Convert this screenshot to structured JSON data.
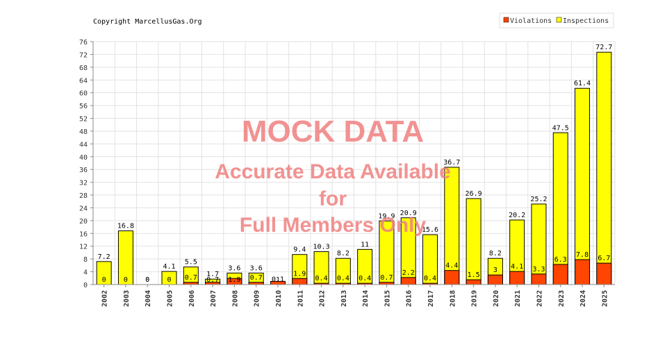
{
  "copyright": "Copyright MarcellusGas.Org",
  "watermark": {
    "line1": "MOCK DATA",
    "line2": "Accurate Data Available",
    "line3": "for",
    "line4": "Full Members Only",
    "color": "#f08080"
  },
  "chart_data": {
    "type": "bar",
    "categories": [
      "2002",
      "2003",
      "2004",
      "2005",
      "2006",
      "2007",
      "2008",
      "2009",
      "2010",
      "2011",
      "2012",
      "2013",
      "2014",
      "2015",
      "2016",
      "2017",
      "2018",
      "2019",
      "2020",
      "2021",
      "2022",
      "2023",
      "2024",
      "2025"
    ],
    "series": [
      {
        "name": "Violations",
        "color": "#ff4500",
        "values": [
          0,
          0,
          0,
          0,
          0.7,
          0.7,
          1.9,
          0.7,
          1,
          1.9,
          0.4,
          0.4,
          0.4,
          0.7,
          2.2,
          0.4,
          4.4,
          1.5,
          3,
          4.1,
          3.3,
          6.3,
          7.8,
          6.7
        ],
        "labels": [
          "0",
          "0",
          "0",
          "0",
          "0.7",
          "0.7",
          "1.9",
          "0.7",
          "1",
          "1.9",
          "0.4",
          "0.4",
          "0.4",
          "0.7",
          "2.2",
          "0.4",
          "4.4",
          "1.5",
          "3",
          "4.1",
          "3.3",
          "6.3",
          "7.8",
          "6.7"
        ]
      },
      {
        "name": "Inspections",
        "color": "#ffff00",
        "values": [
          7.2,
          16.8,
          0,
          4.1,
          5.5,
          1.7,
          3.6,
          3.6,
          0.1,
          9.4,
          10.3,
          8.2,
          11,
          19.9,
          20.9,
          15.6,
          36.7,
          26.9,
          8.2,
          20.2,
          25.2,
          47.5,
          61.4,
          72.7
        ],
        "labels": [
          "7.2",
          "16.8",
          "0",
          "4.1",
          "5.5",
          "1.7",
          "3.6",
          "3.6",
          "0.1",
          "9.4",
          "10.3",
          "8.2",
          "11",
          "19.9",
          "20.9",
          "15.6",
          "36.7",
          "26.9",
          "8.2",
          "20.2",
          "25.2",
          "47.5",
          "61.4",
          "72.7"
        ]
      }
    ],
    "yticks": [
      0,
      4,
      8,
      12,
      16,
      20,
      24,
      28,
      32,
      36,
      40,
      44,
      48,
      52,
      56,
      60,
      64,
      68,
      72,
      76
    ],
    "ylim": [
      0,
      76
    ],
    "grid": true,
    "legend_position": "top-right"
  }
}
